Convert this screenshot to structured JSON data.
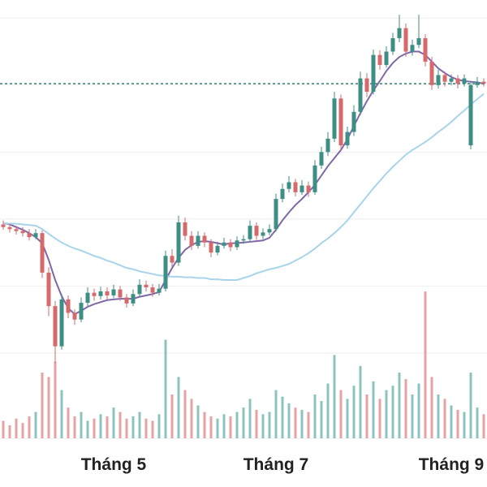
{
  "chart_data": {
    "type": "candlestick",
    "categories": [
      null,
      null,
      null,
      null,
      null,
      null,
      null,
      null,
      null,
      null,
      null,
      null,
      null,
      null,
      null,
      null,
      null,
      "Tháng 5",
      null,
      null,
      null,
      null,
      null,
      null,
      null,
      null,
      null,
      null,
      null,
      null,
      null,
      null,
      null,
      null,
      null,
      null,
      null,
      null,
      null,
      null,
      null,
      null,
      "Tháng 7",
      null,
      null,
      null,
      null,
      null,
      null,
      null,
      null,
      null,
      null,
      null,
      null,
      null,
      null,
      null,
      null,
      null,
      null,
      null,
      null,
      null,
      null,
      null,
      null,
      null,
      null,
      "Tháng 9",
      null,
      null,
      null,
      null,
      null
    ],
    "open": [
      39.2,
      38.8,
      38.5,
      38.2,
      37.9,
      37.3,
      37.9,
      32,
      27,
      21,
      28,
      26,
      25,
      27.5,
      29,
      28.5,
      29.2,
      28.6,
      29.5,
      28.3,
      27.4,
      28.8,
      30.2,
      29.8,
      29.0,
      29.6,
      34.5,
      33.5,
      39.5,
      37.5,
      36,
      37.5,
      36.5,
      35,
      36,
      36.5,
      35.8,
      36.8,
      37,
      39,
      37.5,
      38,
      38.5,
      43,
      44.5,
      45.5,
      44,
      45,
      44,
      48,
      50,
      52,
      58,
      51,
      53,
      56,
      61,
      59,
      64.5,
      63,
      65,
      67,
      68.5,
      65,
      66,
      67,
      63.5,
      60,
      61.5,
      60.5,
      61,
      60.2,
      51,
      60,
      60.5
    ],
    "high": [
      39.8,
      39.3,
      39.0,
      38.8,
      38.5,
      38.5,
      38.3,
      32.8,
      27.8,
      28.8,
      28.6,
      26.5,
      28.3,
      29.8,
      29.6,
      29.9,
      29.8,
      30.2,
      30.0,
      28.8,
      29.5,
      31.0,
      30.8,
      30.3,
      30.3,
      35.3,
      35.5,
      40.5,
      40.2,
      38.2,
      38.2,
      38.0,
      37.0,
      36.6,
      37.2,
      37.0,
      37.4,
      37.6,
      39.8,
      39.5,
      38.6,
      39.2,
      43.8,
      45.3,
      46.4,
      46.0,
      45.8,
      45.6,
      48.8,
      50.8,
      53.0,
      59.0,
      58.6,
      53.8,
      57.0,
      62.0,
      61.8,
      65.3,
      65.2,
      65.8,
      67.8,
      70.5,
      69.2,
      66.8,
      70.5,
      67.6,
      64.2,
      62.3,
      62.0,
      61.6,
      61.5,
      61.6,
      60.6,
      61.2,
      61.0
    ],
    "low": [
      38.4,
      38.0,
      37.7,
      37.4,
      36.8,
      37.0,
      31.2,
      25.5,
      18.5,
      20.5,
      25.2,
      24.2,
      24.6,
      27.0,
      27.8,
      28.0,
      28.0,
      28.2,
      27.8,
      26.8,
      27.0,
      28.4,
      29.2,
      28.4,
      28.6,
      29.2,
      32.8,
      33.0,
      36.8,
      35.4,
      35.6,
      35.8,
      34.3,
      34.6,
      35.6,
      35.2,
      35.4,
      36.3,
      36.6,
      36.9,
      37.0,
      37.6,
      38.1,
      42.5,
      44.0,
      43.4,
      43.6,
      43.3,
      43.6,
      47.5,
      49.4,
      51.5,
      50.2,
      50.5,
      52.4,
      55.5,
      58.2,
      58.6,
      62.3,
      62.6,
      64.5,
      66.4,
      64.2,
      64.4,
      65.5,
      62.8,
      59.3,
      59.5,
      59.8,
      60.0,
      59.5,
      59.8,
      50.4,
      59.6,
      59.8
    ],
    "close": [
      38.8,
      38.5,
      38.2,
      37.9,
      37.3,
      37.9,
      32,
      27,
      21,
      28,
      26,
      25,
      27.5,
      29,
      28.5,
      29.2,
      28.6,
      29.5,
      28.3,
      27.4,
      28.8,
      30.2,
      29.8,
      29.0,
      29.6,
      34.5,
      33.5,
      39.5,
      37.5,
      36,
      37.5,
      36.5,
      35,
      36,
      36.5,
      35.8,
      36.8,
      37,
      39,
      37.5,
      38,
      38.5,
      43,
      44.5,
      45.5,
      44,
      45,
      44,
      48,
      50,
      52,
      58,
      51,
      53,
      56,
      61,
      59,
      64.5,
      63,
      65,
      67,
      68.5,
      65,
      66,
      67,
      63.5,
      60,
      61.5,
      60.5,
      61,
      60.2,
      61,
      60,
      60.5,
      60.2
    ],
    "volume": [
      8,
      6,
      9,
      7,
      10,
      12,
      30,
      28,
      35,
      22,
      14,
      10,
      12,
      8,
      9,
      11,
      10,
      14,
      12,
      9,
      10,
      12,
      9,
      8,
      11,
      45,
      20,
      28,
      22,
      18,
      15,
      12,
      10,
      9,
      11,
      10,
      12,
      14,
      18,
      13,
      11,
      12,
      22,
      19,
      16,
      14,
      13,
      12,
      20,
      17,
      25,
      38,
      22,
      18,
      24,
      33,
      20,
      26,
      18,
      22,
      24,
      30,
      27,
      20,
      25,
      67,
      28,
      20,
      18,
      15,
      13,
      12,
      30,
      14,
      11
    ],
    "lines": [
      {
        "color": "#8068a8",
        "values": [
          39.4,
          39.2,
          38.8,
          38.4,
          37.9,
          37.3,
          36.4,
          33.9,
          30.9,
          28.5,
          26.7,
          25.8,
          26.3,
          26.9,
          27.3,
          27.6,
          27.9,
          28,
          28.1,
          28.1,
          28.1,
          28.4,
          28.6,
          28.8,
          29.1,
          30.9,
          32.7,
          34.2,
          35.4,
          36.1,
          36.6,
          36.7,
          36.6,
          36.4,
          36.2,
          36.4,
          36.4,
          36.5,
          36.6,
          36.7,
          36.8,
          37.2,
          38.4,
          39.8,
          41,
          42.1,
          43,
          44,
          45.1,
          46.5,
          47.9,
          49.1,
          50.3,
          51.9,
          53.9,
          55.8,
          57.6,
          59.2,
          60.6,
          62.1,
          63.3,
          64.2,
          64.7,
          65,
          65,
          64.5,
          63.5,
          62.5,
          61.8,
          61.2,
          60.8,
          60.6,
          60.5,
          60.4,
          60.2
        ]
      },
      {
        "color": "#a8d4ec",
        "values": [
          39.4,
          39.3,
          39.3,
          39.2,
          39.1,
          39,
          38.5,
          37.8,
          37.1,
          36.5,
          36,
          35.6,
          35.3,
          34.9,
          34.5,
          34.2,
          33.8,
          33.5,
          33.1,
          32.7,
          32.5,
          32.2,
          32,
          31.8,
          31.6,
          31.5,
          31.4,
          31.4,
          31.3,
          31.3,
          31.2,
          31.2,
          31,
          31,
          30.9,
          30.9,
          30.9,
          31.2,
          31.5,
          31.9,
          32.2,
          32.5,
          32.7,
          33,
          33.3,
          33.8,
          34.3,
          34.9,
          35.6,
          36.4,
          37.1,
          37.9,
          38.8,
          39.8,
          41,
          42.2,
          43.4,
          44.6,
          45.7,
          46.8,
          47.8,
          48.7,
          49.6,
          50.3,
          50.9,
          51.5,
          52.2,
          53,
          53.7,
          54.5,
          55.4,
          56.2,
          57.1,
          57.9,
          58.7
        ]
      }
    ],
    "up_color": "#3d8f86",
    "down_color": "#d9686b",
    "up_volume_color": "#8cc3bd",
    "down_volume_color": "#e6a3a5",
    "last_price": 60.2,
    "last_price_color": "#2e7d6e",
    "ylim": [
      0,
      72.7
    ],
    "yticks": [
      20,
      30,
      40,
      50,
      60,
      70
    ],
    "y2lim": [
      0,
      200
    ],
    "grid": true
  }
}
